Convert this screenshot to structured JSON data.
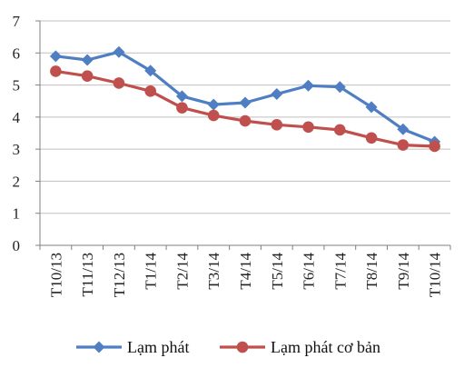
{
  "chart_data": {
    "type": "line",
    "categories": [
      "T10/13",
      "T11/13",
      "T12/13",
      "T1/14",
      "T2/14",
      "T3/14",
      "T4/14",
      "T5/14",
      "T6/14",
      "T7/14",
      "T8/14",
      "T9/14",
      "T10/14"
    ],
    "series": [
      {
        "name": "Lạm phát",
        "color": "#4f7fc2",
        "marker": "diamond",
        "values": [
          5.9,
          5.78,
          6.03,
          5.45,
          4.65,
          4.39,
          4.45,
          4.72,
          4.98,
          4.94,
          4.31,
          3.62,
          3.23
        ]
      },
      {
        "name": "Lạm phát cơ bản",
        "color": "#c0504d",
        "marker": "circle",
        "values": [
          5.43,
          5.28,
          5.06,
          4.81,
          4.29,
          4.05,
          3.88,
          3.76,
          3.69,
          3.6,
          3.35,
          3.13,
          3.09
        ]
      }
    ],
    "yticks": [
      0,
      1,
      2,
      3,
      4,
      5,
      6,
      7
    ],
    "ylim": [
      0,
      7
    ],
    "grid": true,
    "legend_position": "bottom"
  }
}
